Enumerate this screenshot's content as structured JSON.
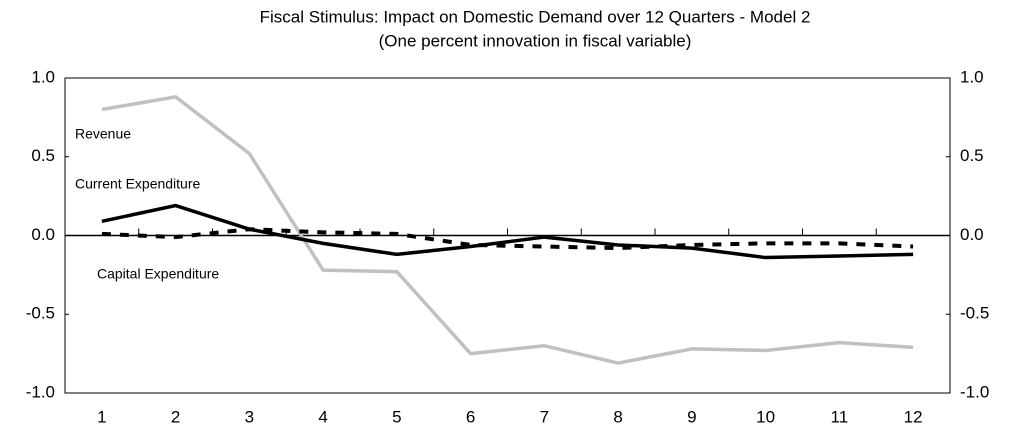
{
  "chart_data": {
    "type": "line",
    "title": "Fiscal Stimulus: Impact on Domestic Demand over 12 Quarters - Model 2",
    "subtitle": "(One percent innovation in fiscal variable)",
    "categories": [
      "1",
      "2",
      "3",
      "4",
      "5",
      "6",
      "7",
      "8",
      "9",
      "10",
      "11",
      "12"
    ],
    "series": [
      {
        "name": "Revenue",
        "color": "#c0c0c0",
        "style": "solid",
        "values": [
          0.8,
          0.88,
          0.52,
          -0.22,
          -0.23,
          -0.75,
          -0.7,
          -0.81,
          -0.72,
          -0.73,
          -0.68,
          -0.71
        ]
      },
      {
        "name": "Current Expenditure",
        "color": "#000000",
        "style": "solid",
        "values": [
          0.09,
          0.19,
          0.04,
          -0.05,
          -0.12,
          -0.07,
          -0.01,
          -0.06,
          -0.08,
          -0.14,
          -0.13,
          -0.12
        ]
      },
      {
        "name": "Capital Expenditure",
        "color": "#000000",
        "style": "dashed",
        "values": [
          0.01,
          -0.01,
          0.04,
          0.02,
          0.01,
          -0.06,
          -0.07,
          -0.08,
          -0.06,
          -0.05,
          -0.05,
          -0.07
        ]
      }
    ],
    "ylim": [
      -1,
      1
    ],
    "yticks": [
      {
        "value": -1,
        "label": "-1.0"
      },
      -0.5,
      {
        "value": 0,
        "label": "0.0"
      },
      0.5,
      {
        "value": 1,
        "label": "1.0"
      }
    ],
    "y2lim": [
      -1,
      1
    ],
    "y2ticks": [
      {
        "value": -1,
        "label": "-1.0"
      },
      -0.5,
      {
        "value": 0,
        "label": "0.0"
      },
      0.5,
      {
        "value": 1,
        "label": "1.0"
      }
    ],
    "grid": false
  }
}
